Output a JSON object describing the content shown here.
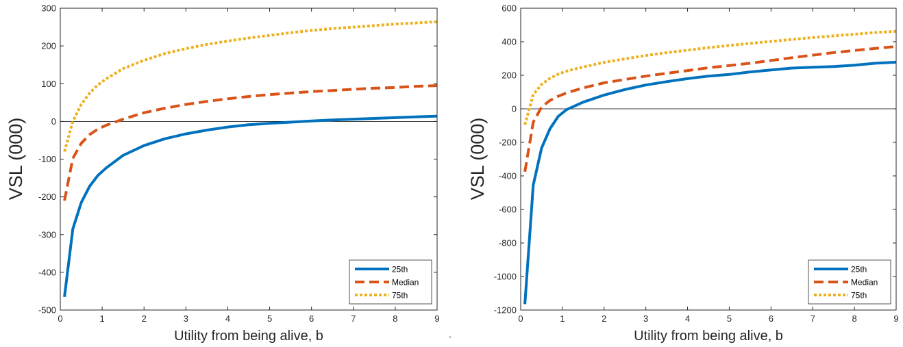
{
  "colors": {
    "p25": "#0072BD",
    "median": "#D95319",
    "p75": "#EDB120",
    "axes": "#262626",
    "zero_line": "#000000"
  },
  "stray_mark": "`",
  "chart_data": [
    {
      "type": "line",
      "xlabel": "Utility from being alive, b",
      "ylabel": "VSL (000)",
      "xlim": [
        0,
        9
      ],
      "ylim": [
        -500,
        300
      ],
      "xticks": [
        0,
        1,
        2,
        3,
        4,
        5,
        6,
        7,
        8,
        9
      ],
      "yticks": [
        -500,
        -400,
        -300,
        -200,
        -100,
        0,
        100,
        200,
        300
      ],
      "grid": false,
      "legend_position": "bottom-right",
      "reference_line": {
        "y": 0
      },
      "series": [
        {
          "name": "25th",
          "style": "solid",
          "color_key": "p25",
          "x": [
            0.1,
            0.3,
            0.5,
            0.7,
            0.9,
            1.1,
            1.5,
            2.0,
            2.5,
            3.0,
            3.5,
            4.0,
            4.5,
            5.0,
            5.5,
            6.0,
            6.5,
            7.0,
            7.5,
            8.0,
            8.5,
            9.0
          ],
          "y": [
            -465,
            -285,
            -215,
            -172,
            -143,
            -123,
            -90,
            -64,
            -46,
            -33,
            -23,
            -15,
            -9,
            -5,
            -2,
            1,
            4,
            6,
            8,
            10,
            12,
            14
          ]
        },
        {
          "name": "Median",
          "style": "dashed",
          "color_key": "median",
          "x": [
            0.1,
            0.3,
            0.5,
            0.7,
            0.9,
            1.1,
            1.5,
            2.0,
            2.5,
            3.0,
            3.5,
            4.0,
            4.5,
            5.0,
            5.5,
            6.0,
            6.5,
            7.0,
            7.5,
            8.0,
            8.5,
            9.0
          ],
          "y": [
            -210,
            -98,
            -58,
            -35,
            -20,
            -10,
            6,
            23,
            35,
            45,
            53,
            60,
            66,
            71,
            75,
            79,
            82,
            85,
            88,
            90,
            93,
            95
          ]
        },
        {
          "name": "75th",
          "style": "dotted",
          "color_key": "p75",
          "x": [
            0.1,
            0.3,
            0.5,
            0.7,
            0.9,
            1.1,
            1.5,
            2.0,
            2.5,
            3.0,
            3.5,
            4.0,
            4.5,
            5.0,
            5.5,
            6.0,
            6.5,
            7.0,
            7.5,
            8.0,
            8.5,
            9.0
          ],
          "y": [
            -80,
            0,
            45,
            75,
            97,
            113,
            140,
            162,
            180,
            193,
            204,
            213,
            221,
            228,
            235,
            241,
            246,
            250,
            254,
            258,
            261,
            264
          ]
        }
      ]
    },
    {
      "type": "line",
      "xlabel": "Utility from being alive, b",
      "ylabel": "VSL (000)",
      "xlim": [
        0,
        9
      ],
      "ylim": [
        -1200,
        600
      ],
      "xticks": [
        0,
        1,
        2,
        3,
        4,
        5,
        6,
        7,
        8,
        9
      ],
      "yticks": [
        -1200,
        -1000,
        -800,
        -600,
        -400,
        -200,
        0,
        200,
        400,
        600
      ],
      "grid": false,
      "legend_position": "bottom-right",
      "reference_line": {
        "y": 0
      },
      "series": [
        {
          "name": "25th",
          "style": "solid",
          "color_key": "p25",
          "x": [
            0.1,
            0.3,
            0.5,
            0.7,
            0.9,
            1.1,
            1.5,
            2.0,
            2.5,
            3.0,
            3.5,
            4.0,
            4.5,
            5.0,
            5.5,
            6.0,
            6.5,
            7.0,
            7.5,
            8.0,
            8.5,
            9.0
          ],
          "y": [
            -1165,
            -455,
            -235,
            -120,
            -45,
            -5,
            40,
            82,
            115,
            142,
            162,
            180,
            195,
            205,
            220,
            232,
            243,
            248,
            252,
            260,
            272,
            278
          ]
        },
        {
          "name": "Median",
          "style": "dashed",
          "color_key": "median",
          "x": [
            0.1,
            0.3,
            0.5,
            0.7,
            0.9,
            1.1,
            1.5,
            2.0,
            2.5,
            3.0,
            3.5,
            4.0,
            4.5,
            5.0,
            5.5,
            6.0,
            6.5,
            7.0,
            7.5,
            8.0,
            8.5,
            9.0
          ],
          "y": [
            -375,
            -80,
            10,
            50,
            75,
            95,
            125,
            155,
            175,
            195,
            212,
            228,
            245,
            258,
            272,
            288,
            305,
            320,
            335,
            348,
            360,
            372
          ]
        },
        {
          "name": "75th",
          "style": "dotted",
          "color_key": "p75",
          "x": [
            0.1,
            0.3,
            0.5,
            0.7,
            0.9,
            1.1,
            1.5,
            2.0,
            2.5,
            3.0,
            3.5,
            4.0,
            4.5,
            5.0,
            5.5,
            6.0,
            6.5,
            7.0,
            7.5,
            8.0,
            8.5,
            9.0
          ],
          "y": [
            -95,
            85,
            145,
            182,
            207,
            225,
            250,
            277,
            298,
            318,
            335,
            350,
            365,
            378,
            390,
            402,
            414,
            425,
            435,
            445,
            455,
            462
          ]
        }
      ]
    }
  ]
}
